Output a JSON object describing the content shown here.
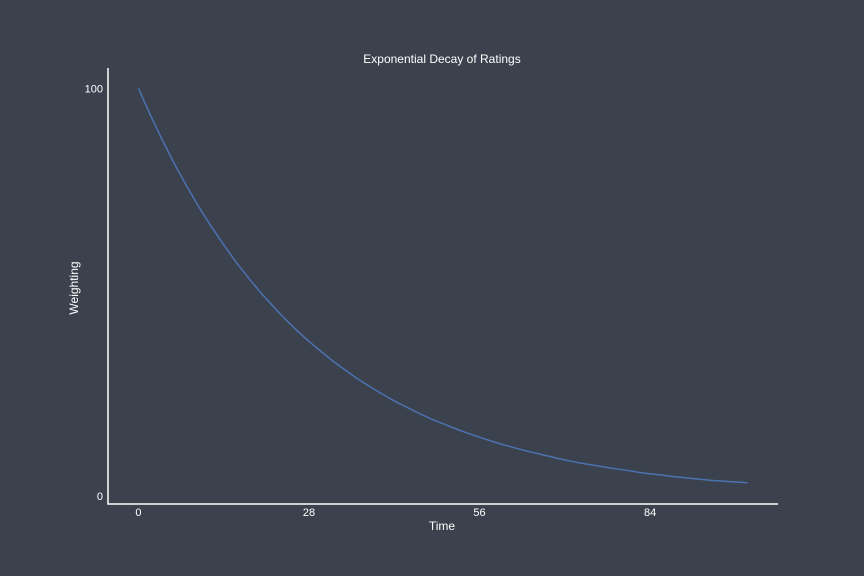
{
  "chart_data": {
    "type": "line",
    "title": "Exponential Decay of Ratings",
    "xlabel": "Time",
    "ylabel": "Weighting",
    "xlim": [
      -5,
      105
    ],
    "ylim": [
      -2,
      105
    ],
    "x_ticks": [
      0,
      28,
      56,
      84
    ],
    "y_ticks": [
      0,
      100
    ],
    "grid": false,
    "colors": {
      "background": "#3b414d",
      "line": "#4c72b0",
      "axis": "#ffffff",
      "text": "#ffffff"
    },
    "series": [
      {
        "x": [
          0,
          2,
          4,
          6,
          8,
          10,
          12,
          14,
          16,
          18,
          20,
          22,
          24,
          26,
          28,
          30,
          32,
          34,
          36,
          38,
          40,
          42,
          44,
          46,
          48,
          50,
          52,
          54,
          56,
          58,
          60,
          62,
          64,
          66,
          68,
          70,
          72,
          74,
          76,
          78,
          80,
          82,
          84,
          86,
          88,
          90,
          92,
          94,
          96,
          98,
          100
        ],
        "y": [
          100.0,
          93.3,
          87.1,
          81.2,
          75.8,
          70.7,
          66.0,
          61.6,
          57.4,
          53.6,
          50.0,
          46.7,
          43.5,
          40.6,
          37.9,
          35.4,
          33.0,
          30.8,
          28.7,
          26.8,
          25.0,
          23.3,
          21.8,
          20.3,
          18.9,
          17.7,
          16.5,
          15.4,
          14.4,
          13.4,
          12.5,
          11.7,
          10.9,
          10.2,
          9.5,
          8.8,
          8.2,
          7.7,
          7.2,
          6.7,
          6.3,
          5.8,
          5.4,
          5.1,
          4.7,
          4.4,
          4.1,
          3.8,
          3.6,
          3.4,
          3.2
        ]
      }
    ]
  }
}
